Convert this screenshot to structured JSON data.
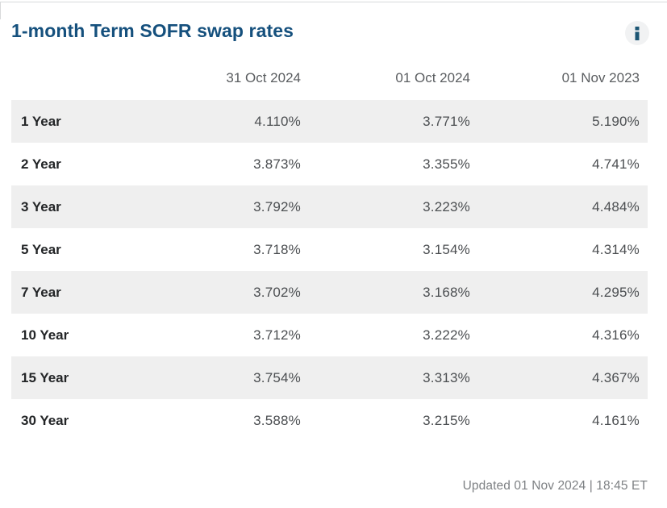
{
  "widget": {
    "title": "1-month Term SOFR swap rates",
    "updated": "Updated 01 Nov 2024 | 18:45 ET"
  },
  "table": {
    "headers": [
      "",
      "31 Oct 2024",
      "01 Oct 2024",
      "01 Nov 2023"
    ],
    "rows": [
      {
        "label": "1 Year",
        "values": [
          "4.110%",
          "3.771%",
          "5.190%"
        ]
      },
      {
        "label": "2 Year",
        "values": [
          "3.873%",
          "3.355%",
          "4.741%"
        ]
      },
      {
        "label": "3 Year",
        "values": [
          "3.792%",
          "3.223%",
          "4.484%"
        ]
      },
      {
        "label": "5 Year",
        "values": [
          "3.718%",
          "3.154%",
          "4.314%"
        ]
      },
      {
        "label": "7 Year",
        "values": [
          "3.702%",
          "3.168%",
          "4.295%"
        ]
      },
      {
        "label": "10 Year",
        "values": [
          "3.712%",
          "3.222%",
          "4.316%"
        ]
      },
      {
        "label": "15 Year",
        "values": [
          "3.754%",
          "3.313%",
          "4.367%"
        ]
      },
      {
        "label": "30 Year",
        "values": [
          "3.588%",
          "3.215%",
          "4.161%"
        ]
      }
    ]
  },
  "colors": {
    "title": "#15507D",
    "stripe": "#EFEFEF",
    "header_text": "#5A5D60",
    "value_text": "#4B4E51",
    "label_text": "#232527",
    "footer_text": "#7E8184",
    "border": "#D8DADB",
    "info_glyph": "#1C5674",
    "info_bg": "#F1F2F3"
  }
}
